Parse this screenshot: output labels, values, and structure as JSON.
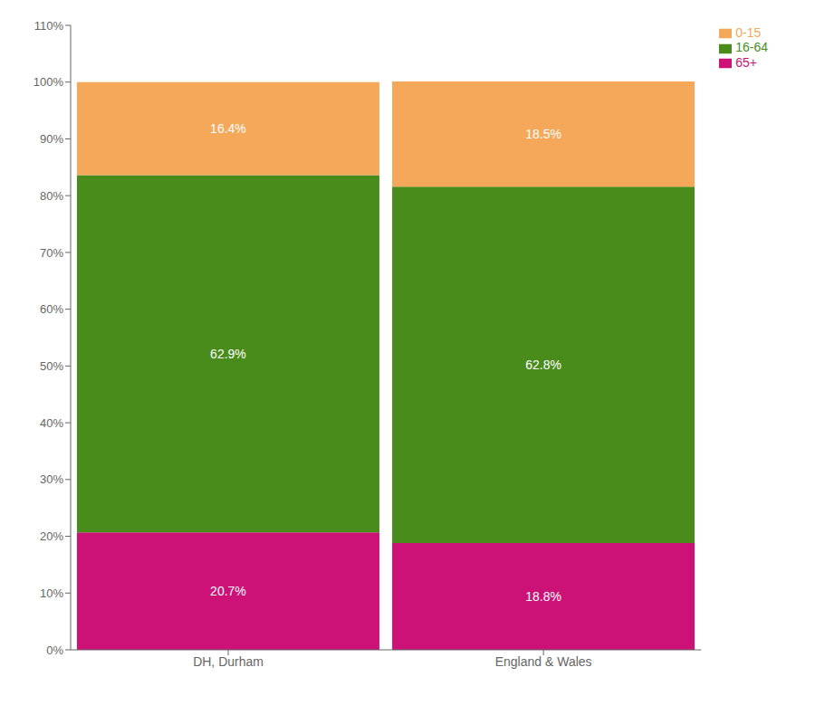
{
  "chart_data": {
    "type": "bar",
    "stacked": true,
    "data_labels": true,
    "grid": false,
    "legend": "right",
    "categories": [
      "DH, Durham",
      "England & Wales"
    ],
    "series": [
      {
        "name": "65+",
        "color": "#cc1177",
        "values": [
          20.7,
          18.8
        ],
        "value_labels": [
          "20.7%",
          "18.8%"
        ]
      },
      {
        "name": "16-64",
        "color": "#4a8c1c",
        "values": [
          62.9,
          62.8
        ],
        "value_labels": [
          "62.9%",
          "62.8%"
        ]
      },
      {
        "name": "0-15",
        "color": "#f5a85a",
        "values": [
          16.4,
          18.5
        ],
        "value_labels": [
          "16.4%",
          "18.5%"
        ]
      }
    ],
    "ylim": [
      0,
      110
    ],
    "yticks": [
      {
        "value": 0,
        "label": "0%"
      },
      {
        "value": 10,
        "label": "10%"
      },
      {
        "value": 20,
        "label": "20%"
      },
      {
        "value": 30,
        "label": "30%"
      },
      {
        "value": 40,
        "label": "40%"
      },
      {
        "value": 50,
        "label": "50%"
      },
      {
        "value": 60,
        "label": "60%"
      },
      {
        "value": 70,
        "label": "70%"
      },
      {
        "value": 80,
        "label": "80%"
      },
      {
        "value": 90,
        "label": "90%"
      },
      {
        "value": 100,
        "label": "100%"
      },
      {
        "value": 110,
        "label": "110%"
      }
    ]
  }
}
